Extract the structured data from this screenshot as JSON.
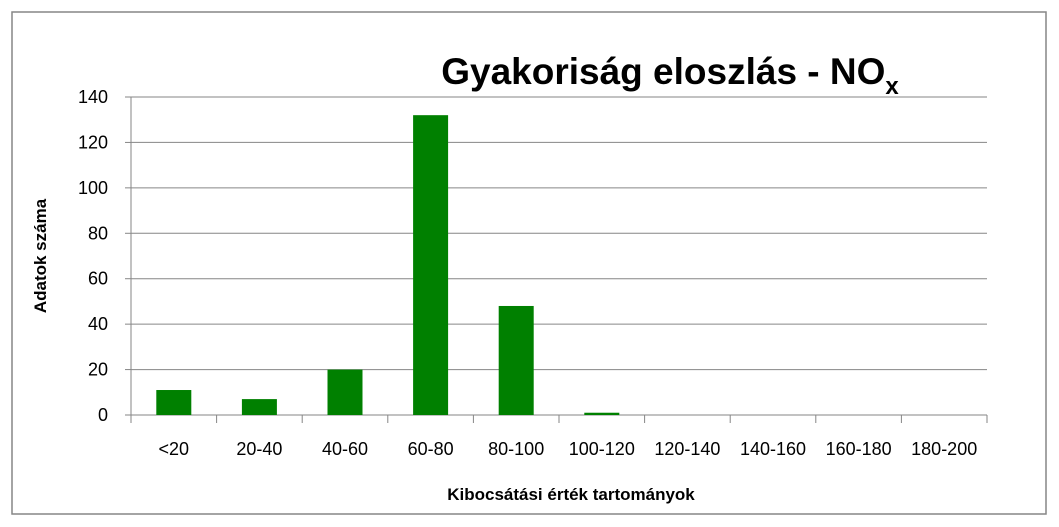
{
  "chart_data": {
    "type": "bar",
    "title": "Gyakoriság eloszlás - NO",
    "title_subscript": "x",
    "x_label": "Kibocsátási érték tartományok",
    "y_label": "Adatok száma",
    "categories": [
      "<20",
      "20-40",
      "40-60",
      "60-80",
      "80-100",
      "100-120",
      "120-140",
      "140-160",
      "160-180",
      "180-200"
    ],
    "values": [
      11,
      7,
      20,
      132,
      48,
      1,
      0,
      0,
      0,
      0
    ],
    "color": "#008000",
    "ylim": [
      0,
      140
    ],
    "yticks": [
      0,
      20,
      40,
      60,
      80,
      100,
      120,
      140
    ],
    "grid": true
  }
}
